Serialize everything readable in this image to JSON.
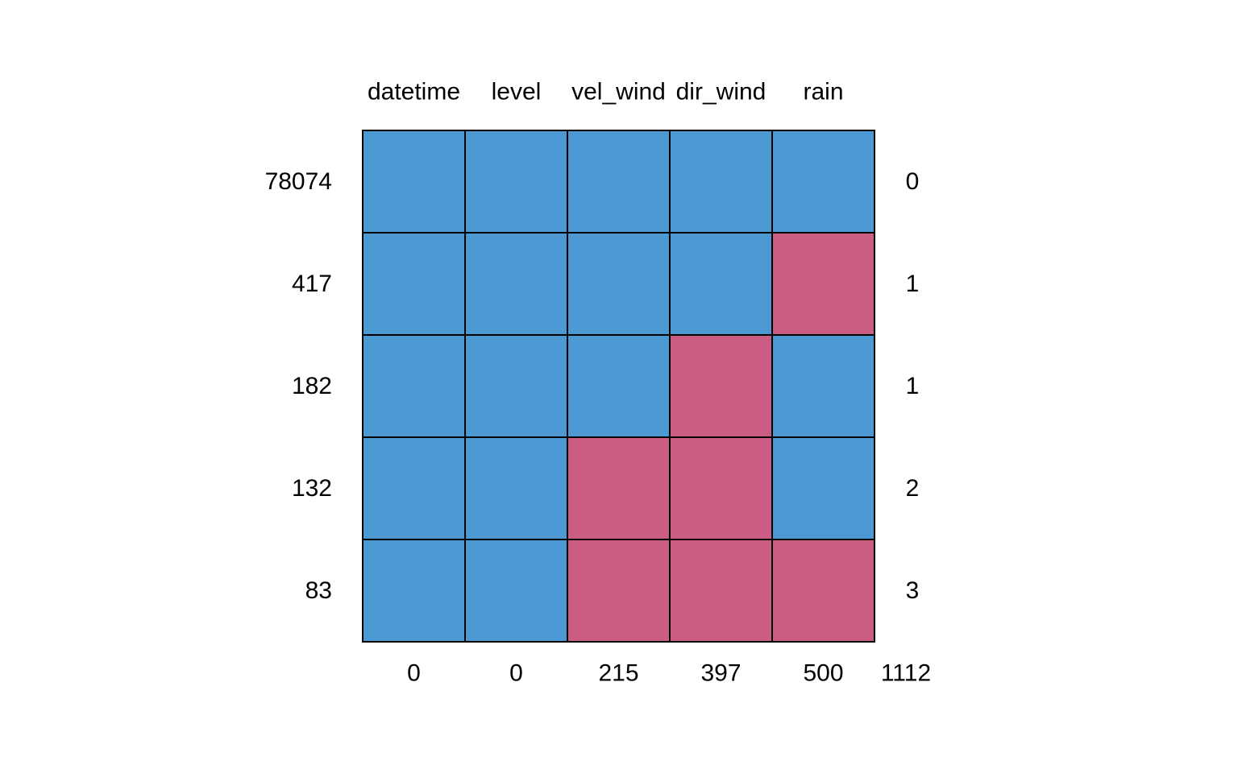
{
  "chart_data": {
    "type": "heatmap",
    "title": "",
    "columns": [
      "datetime",
      "level",
      "vel_wind",
      "dir_wind",
      "rain"
    ],
    "row_counts": [
      "78074",
      "417",
      "182",
      "132",
      "83"
    ],
    "row_missing_counts": [
      "0",
      "1",
      "1",
      "2",
      "3"
    ],
    "column_missing_counts": [
      "0",
      "0",
      "215",
      "397",
      "500"
    ],
    "total_missing": "1112",
    "pattern": [
      [
        1,
        1,
        1,
        1,
        1
      ],
      [
        1,
        1,
        1,
        1,
        0
      ],
      [
        1,
        1,
        1,
        0,
        1
      ],
      [
        1,
        1,
        0,
        0,
        1
      ],
      [
        1,
        1,
        0,
        0,
        0
      ]
    ],
    "colors": {
      "observed": "#4C98D3",
      "missing": "#CB5C83",
      "border": "#000000"
    },
    "legend": "none",
    "grid": true
  }
}
